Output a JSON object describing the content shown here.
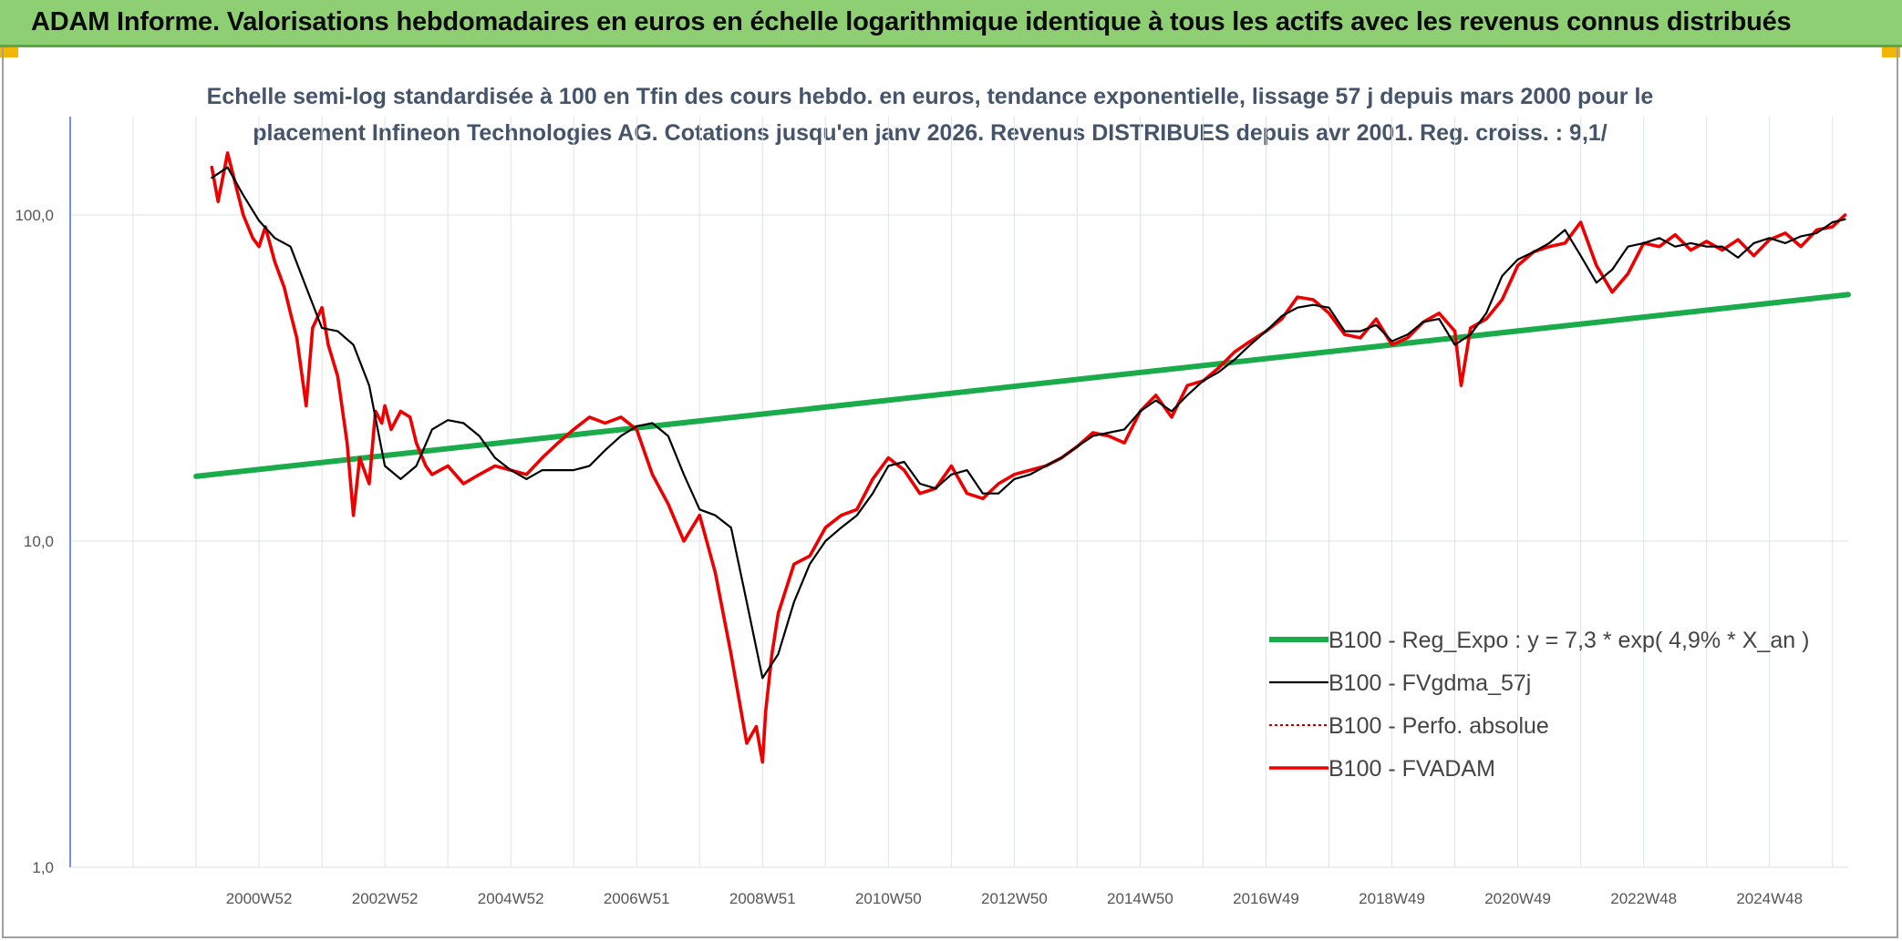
{
  "banner": {
    "title": "ADAM Informe. Valorisations hebdomadaires en euros en échelle logarithmique identique à tous les actifs avec les revenus connus distribués"
  },
  "colors": {
    "banner_bg": "#8fcf74",
    "regression": "#1aab4a",
    "smoothed": "#000000",
    "absolute": "#c00000",
    "fvadam": "#ee0000",
    "axis": "#4472c4",
    "grid": "#dde3ea"
  },
  "chart_data": {
    "type": "line",
    "title_lines": [
      "Echelle semi-log standardisée à 100 en Tfin des cours hebdo. en euros, tendance exponentielle, lissage 57 j depuis mars 2000 pour le",
      "placement Infineon Technologies AG. Cotations jusqu'en janv 2026. Revenus DISTRIBUES depuis avr 2001. Reg. croiss. : 9,1/"
    ],
    "y_scale": "log",
    "ylim": [
      1,
      200
    ],
    "y_ticks": [
      "1,0",
      "10,0",
      "100,0"
    ],
    "y_tick_values": [
      1,
      10,
      100
    ],
    "xlim": [
      1998.0,
      2026.25
    ],
    "x_ticks": [
      "2000W52",
      "2002W52",
      "2004W52",
      "2006W51",
      "2008W51",
      "2010W50",
      "2012W50",
      "2014W50",
      "2016W49",
      "2018W49",
      "2020W49",
      "2022W48",
      "2024W48"
    ],
    "x_tick_values": [
      2001.0,
      2003.0,
      2005.0,
      2007.0,
      2009.0,
      2011.0,
      2013.0,
      2015.0,
      2017.0,
      2019.0,
      2021.0,
      2023.0,
      2025.0
    ],
    "grid": true,
    "legend_position": "right",
    "series": [
      {
        "name": "B100 - Reg_Expo : y = 7,3 * exp( 4,9% *  X_an )",
        "style": "thick-green",
        "x": [
          2000.0,
          2026.25
        ],
        "y": [
          15.8,
          57.0
        ]
      },
      {
        "name": "B100 - FVgdma_57j",
        "style": "thin-black",
        "x": [
          2000.25,
          2000.5,
          2000.75,
          2001.0,
          2001.25,
          2001.5,
          2001.75,
          2002.0,
          2002.25,
          2002.5,
          2002.75,
          2003.0,
          2003.25,
          2003.5,
          2003.75,
          2004.0,
          2004.25,
          2004.5,
          2004.75,
          2005.0,
          2005.25,
          2005.5,
          2005.75,
          2006.0,
          2006.25,
          2006.5,
          2006.75,
          2007.0,
          2007.25,
          2007.5,
          2007.75,
          2008.0,
          2008.25,
          2008.5,
          2008.75,
          2009.0,
          2009.25,
          2009.5,
          2009.75,
          2010.0,
          2010.25,
          2010.5,
          2010.75,
          2011.0,
          2011.25,
          2011.5,
          2011.75,
          2012.0,
          2012.25,
          2012.5,
          2012.75,
          2013.0,
          2013.25,
          2013.5,
          2013.75,
          2014.0,
          2014.25,
          2014.5,
          2014.75,
          2015.0,
          2015.25,
          2015.5,
          2015.75,
          2016.0,
          2016.25,
          2016.5,
          2016.75,
          2017.0,
          2017.25,
          2017.5,
          2017.75,
          2018.0,
          2018.25,
          2018.5,
          2018.75,
          2019.0,
          2019.25,
          2019.5,
          2019.75,
          2020.0,
          2020.25,
          2020.5,
          2020.75,
          2021.0,
          2021.25,
          2021.5,
          2021.75,
          2022.0,
          2022.25,
          2022.5,
          2022.75,
          2023.0,
          2023.25,
          2023.5,
          2023.75,
          2024.0,
          2024.25,
          2024.5,
          2024.75,
          2025.0,
          2025.25,
          2025.5,
          2025.75,
          2026.0,
          2026.2
        ],
        "y": [
          130,
          140,
          115,
          96,
          85,
          80,
          60,
          45,
          44,
          40,
          30,
          17,
          15.5,
          17,
          22,
          23.5,
          23,
          21,
          18,
          16.5,
          15.5,
          16.5,
          16.5,
          16.5,
          17,
          19,
          21,
          22.5,
          23,
          21,
          16,
          12.5,
          12,
          11,
          6.5,
          3.8,
          4.5,
          6.5,
          8.5,
          10,
          11,
          12,
          14,
          17,
          17.5,
          15,
          14.5,
          16,
          16.5,
          14,
          14,
          15.5,
          16,
          17,
          18,
          19.5,
          21,
          21.5,
          22,
          25,
          27,
          25,
          28,
          31,
          33,
          36,
          40,
          44,
          49,
          52,
          53,
          52,
          44,
          44,
          46,
          41,
          43,
          47,
          48,
          40,
          43,
          50,
          65,
          73,
          77,
          82,
          90,
          75,
          62,
          68,
          80,
          82,
          85,
          80,
          82,
          80,
          80,
          74,
          82,
          85,
          82,
          86,
          88,
          95,
          97
        ]
      },
      {
        "name": "B100 - Perfo. absolue",
        "style": "dotted-darkred",
        "x": [],
        "y": []
      },
      {
        "name": "B100 - FVADAM",
        "style": "thick-red",
        "x": [
          2000.25,
          2000.35,
          2000.5,
          2000.6,
          2000.75,
          2000.9,
          2001.0,
          2001.1,
          2001.25,
          2001.4,
          2001.5,
          2001.6,
          2001.75,
          2001.85,
          2002.0,
          2002.1,
          2002.25,
          2002.4,
          2002.5,
          2002.6,
          2002.75,
          2002.85,
          2002.95,
          2003.0,
          2003.1,
          2003.25,
          2003.4,
          2003.5,
          2003.65,
          2003.75,
          2004.0,
          2004.25,
          2004.5,
          2004.75,
          2005.0,
          2005.25,
          2005.5,
          2005.75,
          2006.0,
          2006.25,
          2006.5,
          2006.75,
          2007.0,
          2007.25,
          2007.5,
          2007.75,
          2008.0,
          2008.25,
          2008.5,
          2008.75,
          2008.9,
          2009.0,
          2009.05,
          2009.15,
          2009.25,
          2009.5,
          2009.75,
          2010.0,
          2010.25,
          2010.5,
          2010.75,
          2011.0,
          2011.25,
          2011.5,
          2011.75,
          2012.0,
          2012.25,
          2012.5,
          2012.75,
          2013.0,
          2013.25,
          2013.5,
          2013.75,
          2014.0,
          2014.25,
          2014.5,
          2014.75,
          2015.0,
          2015.25,
          2015.5,
          2015.75,
          2016.0,
          2016.25,
          2016.5,
          2016.75,
          2017.0,
          2017.25,
          2017.5,
          2017.75,
          2018.0,
          2018.25,
          2018.5,
          2018.75,
          2019.0,
          2019.25,
          2019.5,
          2019.75,
          2020.0,
          2020.1,
          2020.25,
          2020.5,
          2020.75,
          2021.0,
          2021.25,
          2021.5,
          2021.75,
          2022.0,
          2022.25,
          2022.5,
          2022.75,
          2023.0,
          2023.25,
          2023.5,
          2023.75,
          2024.0,
          2024.25,
          2024.5,
          2024.75,
          2025.0,
          2025.25,
          2025.5,
          2025.75,
          2026.0,
          2026.2
        ],
        "y": [
          140,
          110,
          155,
          130,
          100,
          85,
          80,
          92,
          72,
          60,
          50,
          42,
          26,
          45,
          52,
          40,
          32,
          20,
          12,
          18,
          15,
          25,
          23,
          26,
          22,
          25,
          24,
          20,
          17,
          16,
          17,
          15,
          16,
          17,
          16.5,
          16,
          18,
          20,
          22,
          24,
          23,
          24,
          22,
          16,
          13,
          10,
          12,
          8,
          4.5,
          2.4,
          2.7,
          2.1,
          3,
          4.5,
          6,
          8.5,
          9,
          11,
          12,
          12.5,
          15.5,
          18,
          16.5,
          14,
          14.5,
          17,
          14,
          13.5,
          15,
          16,
          16.5,
          17,
          18,
          19.5,
          21.5,
          21,
          20,
          25,
          28,
          24,
          30,
          31,
          34,
          38,
          41,
          44,
          48,
          56,
          55,
          50,
          43,
          42,
          48,
          40,
          42,
          47,
          50,
          44,
          30,
          45,
          48,
          55,
          70,
          77,
          80,
          82,
          95,
          70,
          58,
          66,
          82,
          80,
          87,
          78,
          83,
          78,
          84,
          75,
          84,
          88,
          80,
          90,
          92,
          100
        ]
      }
    ]
  }
}
